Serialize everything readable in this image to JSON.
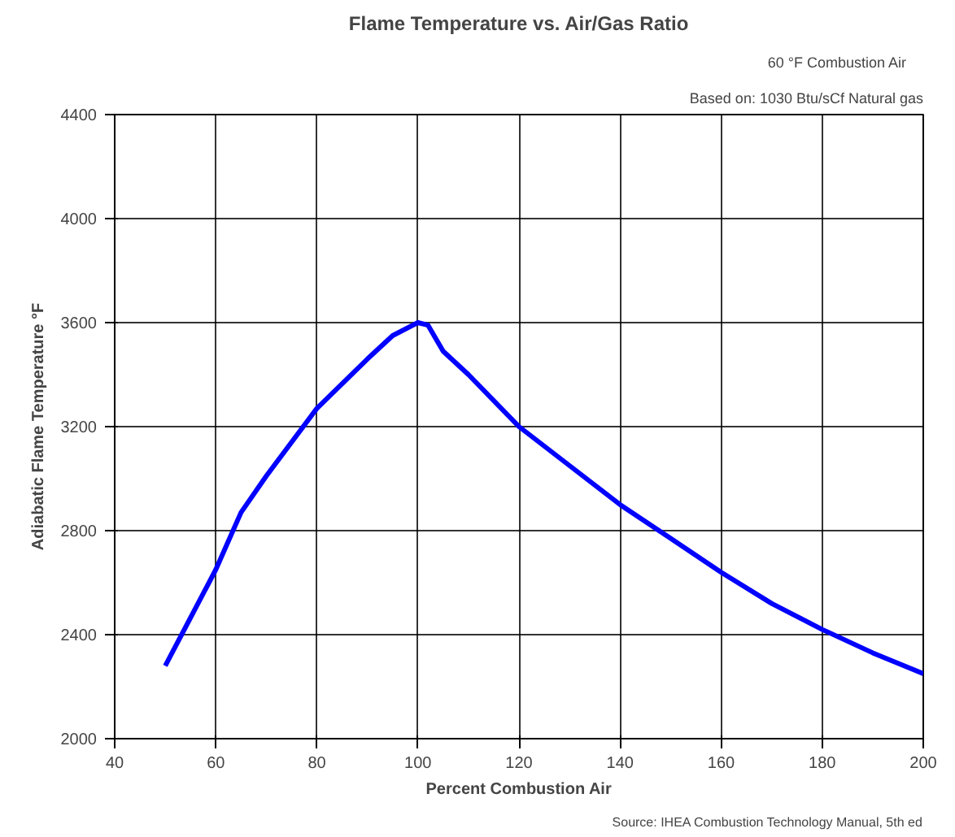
{
  "chart_data": {
    "type": "line",
    "title": "Flame Temperature vs. Air/Gas Ratio",
    "xlabel": "Percent Combustion Air",
    "ylabel": "Adiabatic Flame Temperature °F",
    "annotations": [
      "Based on: 1030 Btu/sCf Natural gas",
      "60 °F Combustion Air",
      "Source: IHEA Combustion Technology Manual, 5th ed"
    ],
    "x": [
      50,
      60,
      65,
      70,
      80,
      90,
      95,
      100,
      102,
      105,
      110,
      120,
      130,
      140,
      150,
      160,
      170,
      180,
      190,
      200
    ],
    "series": [
      {
        "color": "#0000ff",
        "values": [
          2280,
          2650,
          2870,
          3010,
          3270,
          3460,
          3550,
          3600,
          3590,
          3490,
          3400,
          3200,
          3050,
          2900,
          2770,
          2640,
          2520,
          2420,
          2330,
          2250
        ]
      }
    ],
    "xlim": [
      40,
      200
    ],
    "xticks": [
      40,
      60,
      80,
      100,
      120,
      140,
      160,
      180,
      200
    ],
    "ylim": [
      2000,
      4400
    ],
    "yticks": [
      2000,
      2400,
      2800,
      3200,
      3600,
      4000,
      4400
    ],
    "grid": true,
    "marker": "none",
    "line_style": "solid"
  }
}
